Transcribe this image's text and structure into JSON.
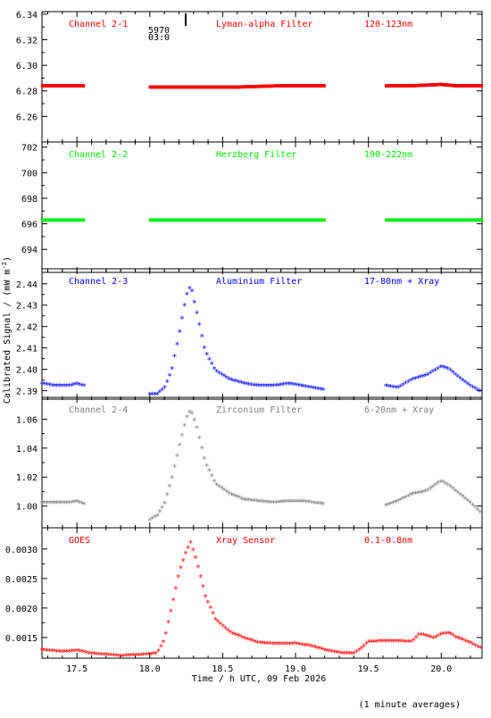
{
  "figure": {
    "ylabel": "Calibrated Signal / (mW m",
    "ylabel_sup": "-2",
    "ylabel_end": ")",
    "xlabel": "Time / h UTC, 09 Feb 2026",
    "footnote": "(1 minute averages)",
    "marker_text_1": "5970",
    "marker_text_2": "03:0"
  },
  "chart_data": [
    {
      "type": "scatter",
      "channel_label": "Channel 2-1",
      "filter_label": "Lyman-alpha Filter",
      "band_label": "120-123nm",
      "color": "#ff0000",
      "marker": "dot",
      "ylim": [
        6.24,
        6.342
      ],
      "yticks": [
        6.26,
        6.28,
        6.3,
        6.32,
        6.34
      ],
      "ytick_labels": [
        "6.26",
        "6.28",
        "6.30",
        "6.32",
        "6.34"
      ],
      "xlim": [
        17.26,
        20.28
      ],
      "xticks": [
        17.5,
        18.0,
        18.5,
        19.0,
        19.5,
        20.0
      ],
      "xtick_labels": [
        "17.5",
        "18.0",
        "18.5",
        "19.0",
        "19.5",
        "20.0"
      ],
      "series": [
        {
          "segments": [
            {
              "x": [
                17.26,
                17.4,
                17.55
              ],
              "y": [
                6.284,
                6.284,
                6.284
              ]
            },
            {
              "x": [
                18.0,
                18.3,
                18.6,
                18.9,
                19.2
              ],
              "y": [
                6.283,
                6.283,
                6.283,
                6.284,
                6.284
              ]
            },
            {
              "x": [
                19.62,
                19.8,
                20.0,
                20.1,
                20.28
              ],
              "y": [
                6.284,
                6.284,
                6.285,
                6.284,
                6.284
              ]
            }
          ]
        }
      ]
    },
    {
      "type": "scatter",
      "channel_label": "Channel 2-2",
      "filter_label": "Herzberg Filter",
      "band_label": "190-222nm",
      "color": "#00ee00",
      "marker": "dot",
      "ylim": [
        692.2,
        702.4
      ],
      "yticks": [
        694,
        696,
        698,
        700,
        702
      ],
      "ytick_labels": [
        "694",
        "696",
        "698",
        "700",
        "702"
      ],
      "xlim": [
        17.26,
        20.28
      ],
      "xticks": [
        17.5,
        18.0,
        18.5,
        19.0,
        19.5,
        20.0
      ],
      "xtick_labels": [
        "17.5",
        "18.0",
        "18.5",
        "19.0",
        "19.5",
        "20.0"
      ],
      "series": [
        {
          "segments": [
            {
              "x": [
                17.26,
                17.55
              ],
              "y": [
                696.3,
                696.3
              ]
            },
            {
              "x": [
                18.0,
                19.2
              ],
              "y": [
                696.3,
                696.3
              ]
            },
            {
              "x": [
                19.62,
                20.28
              ],
              "y": [
                696.3,
                696.3
              ]
            }
          ]
        }
      ]
    },
    {
      "type": "scatter",
      "channel_label": "Channel 2-3",
      "filter_label": "Aluminium Filter",
      "band_label": "17-80nm + Xray",
      "color": "#0000ff",
      "marker": "star",
      "ylim": [
        2.386,
        2.447
      ],
      "yticks": [
        2.39,
        2.4,
        2.41,
        2.42,
        2.43,
        2.44
      ],
      "ytick_labels": [
        "2.39",
        "2.40",
        "2.41",
        "2.42",
        "2.43",
        "2.44"
      ],
      "xlim": [
        17.26,
        20.28
      ],
      "xticks": [
        17.5,
        18.0,
        18.5,
        19.0,
        19.5,
        20.0
      ],
      "xtick_labels": [
        "17.5",
        "18.0",
        "18.5",
        "19.0",
        "19.5",
        "20.0"
      ],
      "series": [
        {
          "segments": [
            {
              "x": [
                17.26,
                17.35,
                17.45,
                17.5,
                17.55
              ],
              "y": [
                2.393,
                2.392,
                2.392,
                2.393,
                2.392
              ]
            },
            {
              "x": [
                18.0,
                18.05,
                18.1,
                18.15,
                18.2,
                18.25,
                18.28,
                18.32,
                18.38,
                18.45,
                18.55,
                18.65,
                18.75,
                18.85,
                18.95,
                19.05,
                19.12,
                19.2
              ],
              "y": [
                2.388,
                2.388,
                2.391,
                2.399,
                2.416,
                2.434,
                2.439,
                2.427,
                2.408,
                2.399,
                2.395,
                2.393,
                2.392,
                2.392,
                2.393,
                2.392,
                2.391,
                2.39
              ]
            },
            {
              "x": [
                19.62,
                19.7,
                19.8,
                19.9,
                20.0,
                20.05,
                20.1,
                20.2,
                20.28
              ],
              "y": [
                2.392,
                2.391,
                2.395,
                2.397,
                2.401,
                2.4,
                2.397,
                2.392,
                2.389
              ]
            }
          ]
        }
      ]
    },
    {
      "type": "scatter",
      "channel_label": "Channel 2-4",
      "filter_label": "Zirconium Filter",
      "band_label": "6-20nm + Xray",
      "color": "#808080",
      "marker": "star",
      "ylim": [
        0.985,
        1.075
      ],
      "yticks": [
        1.0,
        1.02,
        1.04,
        1.06
      ],
      "ytick_labels": [
        "1.00",
        "1.02",
        "1.04",
        "1.06"
      ],
      "xlim": [
        17.26,
        20.28
      ],
      "xticks": [
        17.5,
        18.0,
        18.5,
        19.0,
        19.5,
        20.0
      ],
      "xtick_labels": [
        "17.5",
        "18.0",
        "18.5",
        "19.0",
        "19.5",
        "20.0"
      ],
      "series": [
        {
          "segments": [
            {
              "x": [
                17.26,
                17.35,
                17.45,
                17.5,
                17.55
              ],
              "y": [
                1.002,
                1.002,
                1.002,
                1.003,
                1.001
              ]
            },
            {
              "x": [
                18.0,
                18.05,
                18.1,
                18.15,
                18.2,
                18.25,
                18.28,
                18.32,
                18.38,
                18.45,
                18.55,
                18.65,
                18.75,
                18.85,
                18.95,
                19.05,
                19.12,
                19.2
              ],
              "y": [
                0.99,
                0.993,
                1.001,
                1.018,
                1.04,
                1.06,
                1.066,
                1.055,
                1.03,
                1.015,
                1.008,
                1.004,
                1.003,
                1.002,
                1.003,
                1.003,
                1.002,
                1.001
              ]
            },
            {
              "x": [
                19.62,
                19.7,
                19.8,
                19.9,
                20.0,
                20.05,
                20.1,
                20.2,
                20.28
              ],
              "y": [
                1.0,
                1.003,
                1.008,
                1.01,
                1.017,
                1.014,
                1.01,
                1.002,
                0.994
              ]
            }
          ]
        }
      ]
    },
    {
      "type": "scatter",
      "channel_label": "GOES",
      "filter_label": "Xray Sensor",
      "band_label": "0.1-0.8nm",
      "color": "#ff0000",
      "marker": "star",
      "ylim": [
        0.00115,
        0.00336
      ],
      "yticks": [
        0.0015,
        0.002,
        0.0025,
        0.003
      ],
      "ytick_labels": [
        "0.0015",
        "0.0020",
        "0.0025",
        "0.0030"
      ],
      "xlim": [
        17.26,
        20.28
      ],
      "xticks": [
        17.5,
        18.0,
        18.5,
        19.0,
        19.5,
        20.0
      ],
      "xtick_labels": [
        "17.5",
        "18.0",
        "18.5",
        "19.0",
        "19.5",
        "20.0"
      ],
      "series": [
        {
          "segments": [
            {
              "x": [
                17.26,
                17.4,
                17.5,
                17.6,
                17.8,
                17.95,
                18.05,
                18.1,
                18.15,
                18.2,
                18.25,
                18.28,
                18.32,
                18.38,
                18.45,
                18.55,
                18.65,
                18.75,
                18.9,
                19.0,
                19.1,
                19.2,
                19.3,
                19.4,
                19.45,
                19.5,
                19.6,
                19.7,
                19.8,
                19.85,
                19.9,
                19.95,
                20.0,
                20.05,
                20.1,
                20.2,
                20.28
              ],
              "y": [
                0.00128,
                0.00125,
                0.00127,
                0.00122,
                0.00118,
                0.0012,
                0.00122,
                0.00145,
                0.002,
                0.00258,
                0.00295,
                0.0031,
                0.0028,
                0.0022,
                0.0018,
                0.00158,
                0.00148,
                0.0014,
                0.00138,
                0.00139,
                0.00135,
                0.00128,
                0.00123,
                0.00122,
                0.0013,
                0.00142,
                0.00143,
                0.00143,
                0.00142,
                0.00155,
                0.00152,
                0.00148,
                0.00155,
                0.00157,
                0.0015,
                0.0014,
                0.0013
              ]
            }
          ]
        }
      ]
    }
  ]
}
